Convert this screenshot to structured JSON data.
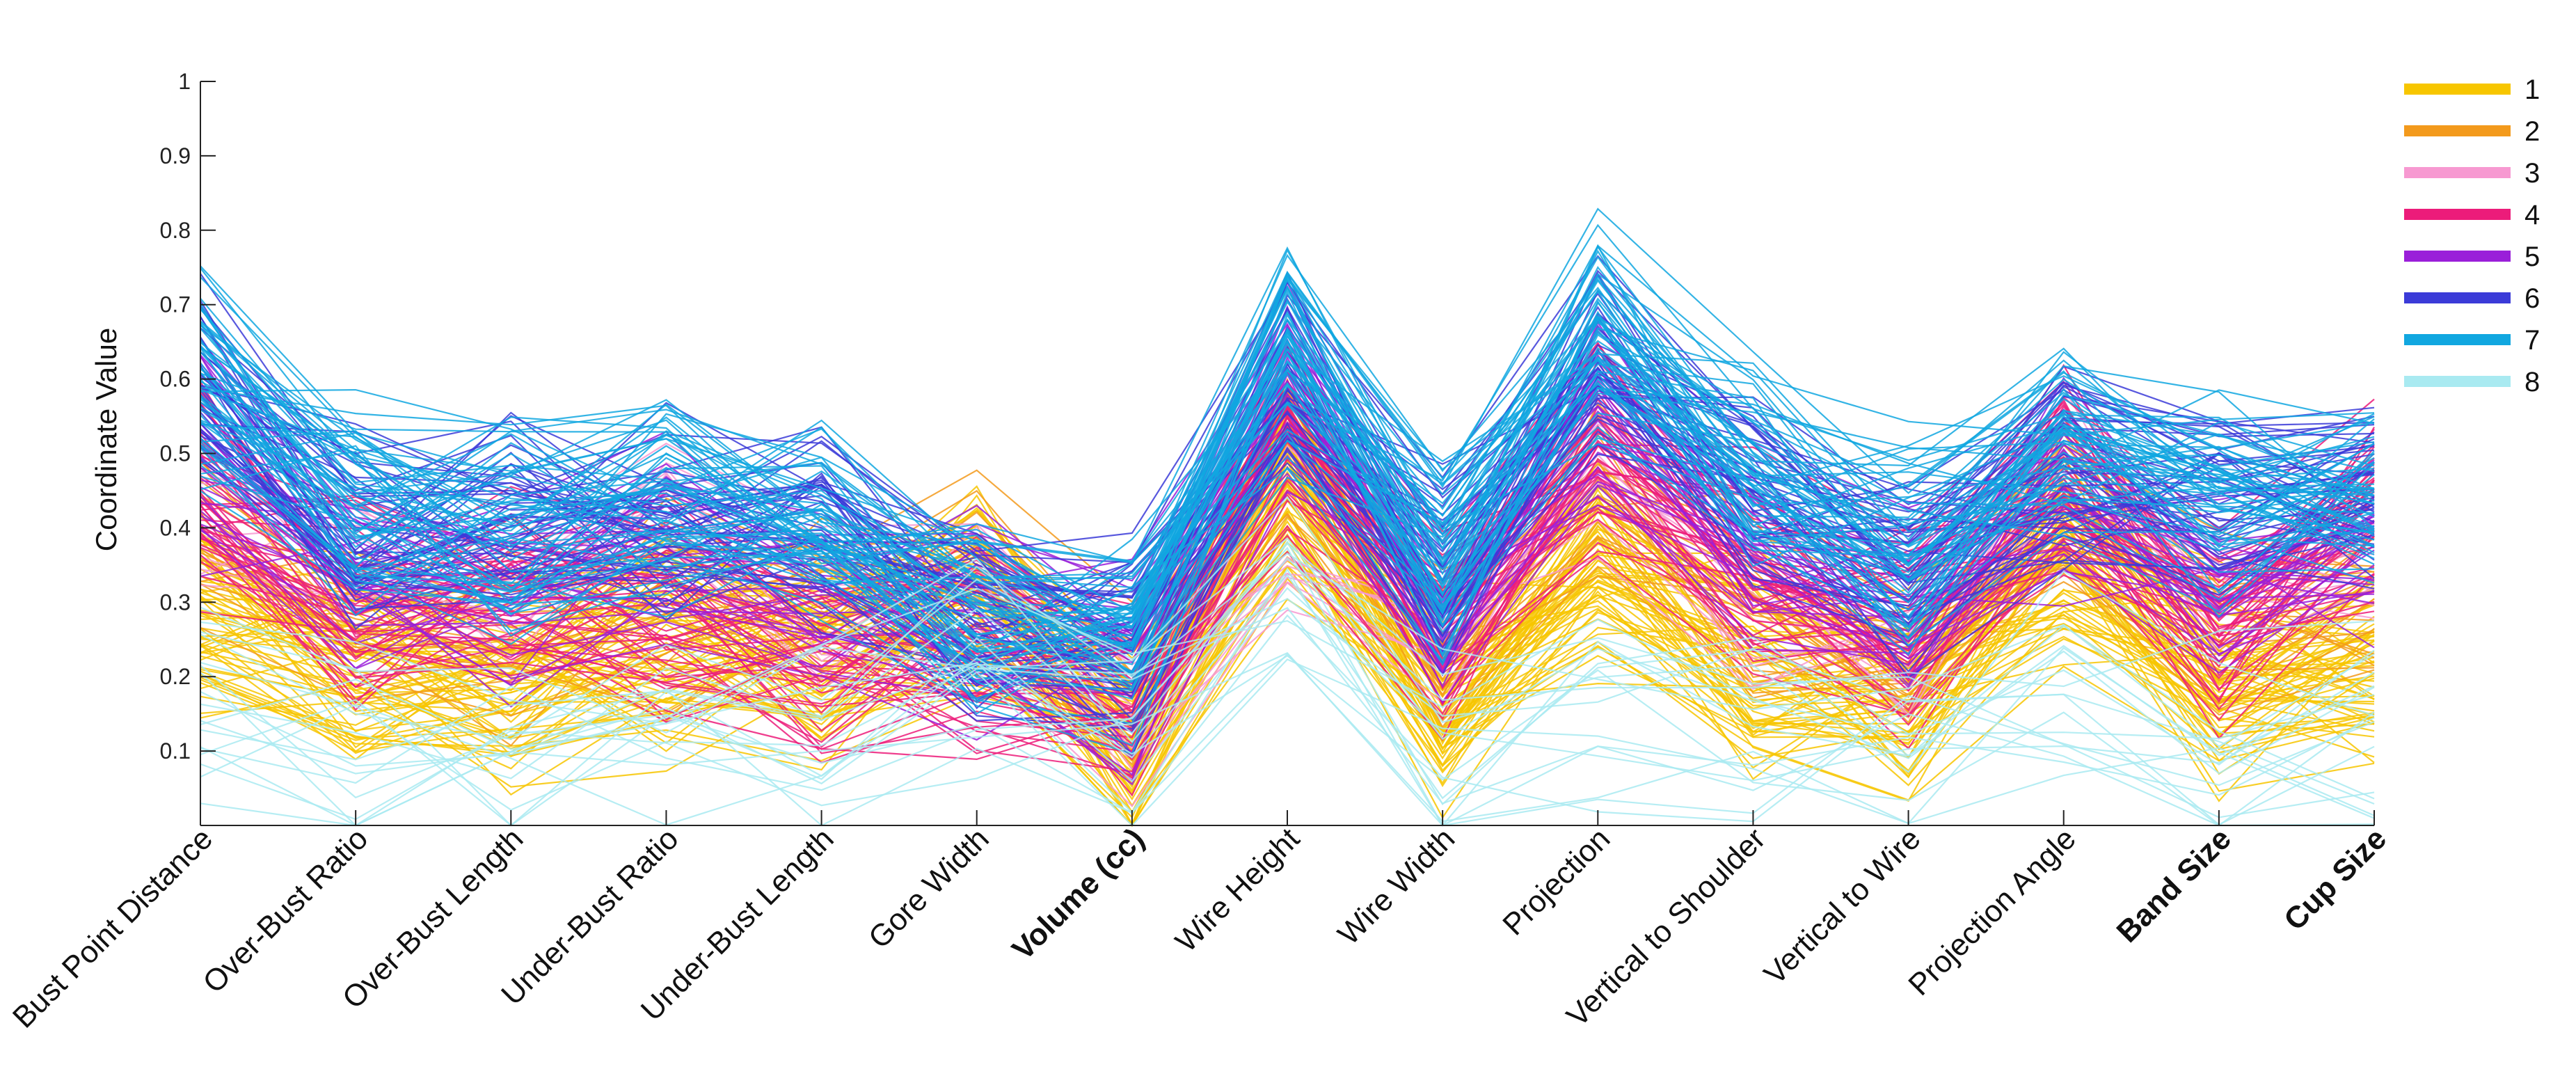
{
  "chart_data": {
    "type": "parallel-coordinates",
    "ylabel": "Coordinate Value",
    "ylim": [
      0,
      1
    ],
    "yticks": [
      0.1,
      0.2,
      0.3,
      0.4,
      0.5,
      0.6,
      0.7,
      0.8,
      0.9,
      1
    ],
    "ytick_labels": [
      "0.1",
      "0.2",
      "0.3",
      "0.4",
      "0.5",
      "0.6",
      "0.7",
      "0.8",
      "0.9",
      "1"
    ],
    "axes": [
      {
        "label": "Bust Point Distance",
        "bold": false
      },
      {
        "label": "Over-Bust Ratio",
        "bold": false
      },
      {
        "label": "Over-Bust Length",
        "bold": false
      },
      {
        "label": "Under-Bust Ratio",
        "bold": false
      },
      {
        "label": "Under-Bust Length",
        "bold": false
      },
      {
        "label": "Gore Width",
        "bold": false
      },
      {
        "label": "Volume (cc)",
        "bold": true
      },
      {
        "label": "Wire Height",
        "bold": false
      },
      {
        "label": "Wire Width",
        "bold": false
      },
      {
        "label": "Projection",
        "bold": false
      },
      {
        "label": "Vertical to Shoulder",
        "bold": false
      },
      {
        "label": "Vertical to Wire",
        "bold": false
      },
      {
        "label": "Projection Angle",
        "bold": false
      },
      {
        "label": "Band Size",
        "bold": true
      },
      {
        "label": "Cup Size",
        "bold": true
      }
    ],
    "legend_position": "top-right",
    "series": [
      {
        "name": "1",
        "color": "#F7C600",
        "line_count": 60,
        "typical_profile": [
          0.3,
          0.22,
          0.2,
          0.24,
          0.22,
          0.3,
          0.1,
          0.46,
          0.16,
          0.36,
          0.22,
          0.16,
          0.36,
          0.19,
          0.22
        ]
      },
      {
        "name": "2",
        "color": "#F39A1C",
        "line_count": 18,
        "typical_profile": [
          0.4,
          0.28,
          0.26,
          0.3,
          0.3,
          0.34,
          0.16,
          0.52,
          0.22,
          0.46,
          0.3,
          0.22,
          0.44,
          0.25,
          0.3
        ]
      },
      {
        "name": "3",
        "color": "#F799D1",
        "line_count": 10,
        "typical_profile": [
          0.44,
          0.32,
          0.28,
          0.4,
          0.3,
          0.3,
          0.14,
          0.4,
          0.22,
          0.44,
          0.3,
          0.24,
          0.48,
          0.31,
          0.38
        ]
      },
      {
        "name": "4",
        "color": "#EC1C7A",
        "line_count": 40,
        "typical_profile": [
          0.45,
          0.3,
          0.31,
          0.28,
          0.24,
          0.24,
          0.18,
          0.52,
          0.26,
          0.52,
          0.34,
          0.26,
          0.47,
          0.25,
          0.45
        ]
      },
      {
        "name": "5",
        "color": "#9A1FD9",
        "line_count": 25,
        "typical_profile": [
          0.5,
          0.35,
          0.3,
          0.38,
          0.3,
          0.28,
          0.2,
          0.58,
          0.28,
          0.58,
          0.38,
          0.28,
          0.44,
          0.31,
          0.36
        ]
      },
      {
        "name": "6",
        "color": "#3B3BD8",
        "line_count": 40,
        "typical_profile": [
          0.58,
          0.4,
          0.42,
          0.4,
          0.4,
          0.26,
          0.24,
          0.62,
          0.34,
          0.64,
          0.46,
          0.34,
          0.48,
          0.44,
          0.45
        ]
      },
      {
        "name": "7",
        "color": "#11A7E0",
        "line_count": 55,
        "typical_profile": [
          0.6,
          0.44,
          0.4,
          0.44,
          0.42,
          0.28,
          0.26,
          0.62,
          0.36,
          0.66,
          0.48,
          0.38,
          0.52,
          0.44,
          0.45
        ]
      },
      {
        "name": "8",
        "color": "#A9EAF1",
        "line_count": 18,
        "typical_profile": [
          0.18,
          0.12,
          0.1,
          0.14,
          0.14,
          0.2,
          0.1,
          0.36,
          0.08,
          0.16,
          0.14,
          0.12,
          0.2,
          0.1,
          0.12
        ]
      }
    ]
  }
}
